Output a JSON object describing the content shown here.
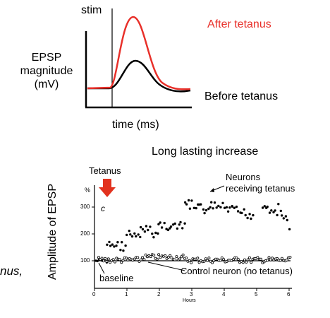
{
  "top_panel": {
    "stim_label": "stim",
    "after_label": "After tetanus",
    "before_label": "Before tetanus",
    "ylabel_line1": "EPSP",
    "ylabel_line2": "magnitude",
    "ylabel_line3": "(mV)",
    "xlabel": "time (ms)",
    "after_color": "#e8302a",
    "before_color": "#000000"
  },
  "bottom_panel": {
    "title": "Long lasting increase",
    "tetanus_label": "Tetanus",
    "tetanus_arrow_color": "#e2321e",
    "ylabel": "Amplitude of EPSP",
    "panel_letter": "c",
    "unit": "%",
    "yticks": [
      "100",
      "200",
      "300"
    ],
    "xticks": [
      "0",
      "1",
      "2",
      "3",
      "4",
      "5",
      "6"
    ],
    "xunit": "Hours",
    "neurons_label_line1": "Neurons",
    "neurons_label_line2": "receiving tetanus",
    "control_label": "Control neuron (no tetanus)",
    "baseline_label": "baseline"
  },
  "edge_text": "nus,"
}
